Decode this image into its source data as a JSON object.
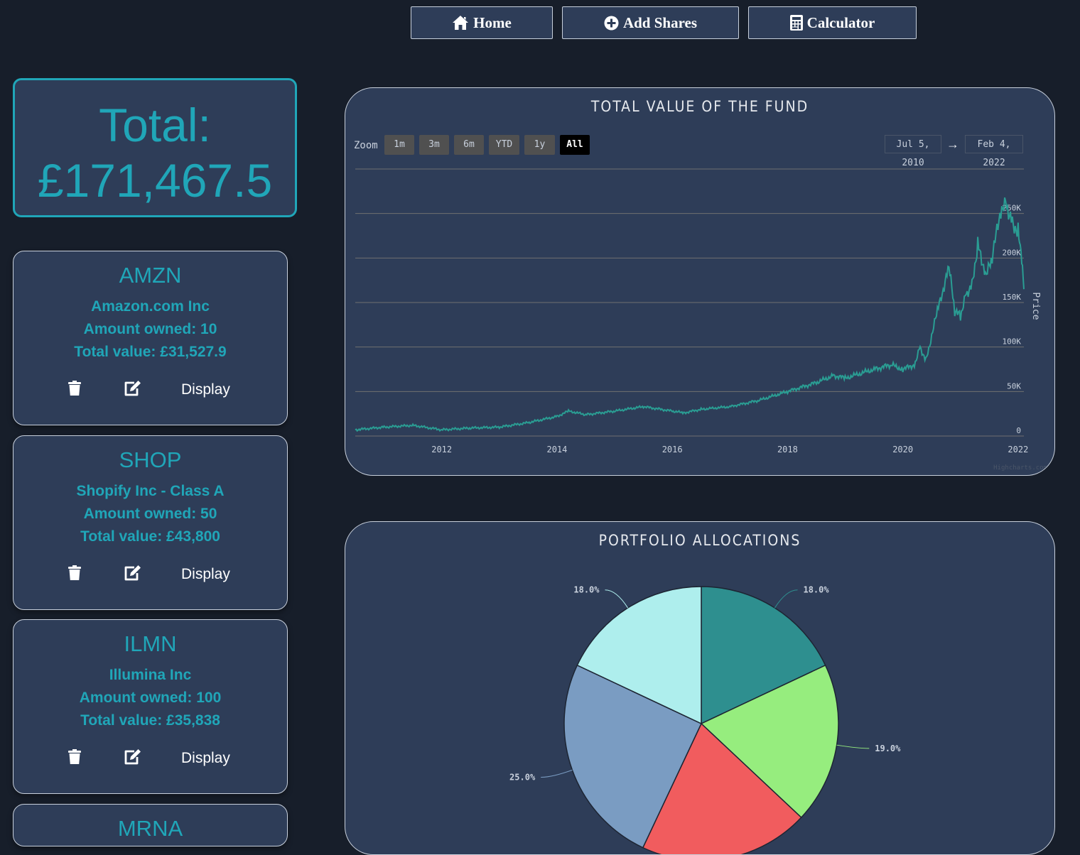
{
  "nav": {
    "home_label": "Home",
    "add_label": "Add Shares",
    "calc_label": "Calculator"
  },
  "total": {
    "label": "Total:",
    "value": "£171,467.5"
  },
  "stocks": [
    {
      "ticker": "AMZN",
      "name": "Amazon.com Inc",
      "amount": "Amount owned: 10",
      "total": "Total value: £31,527.9",
      "display_label": "Display"
    },
    {
      "ticker": "SHOP",
      "name": "Shopify Inc - Class A",
      "amount": "Amount owned: 50",
      "total": "Total value: £43,800",
      "display_label": "Display"
    },
    {
      "ticker": "ILMN",
      "name": "Illumina Inc",
      "amount": "Amount owned: 100",
      "total": "Total value: £35,838",
      "display_label": "Display"
    },
    {
      "ticker": "MRNA"
    }
  ],
  "fund_chart": {
    "title": "TOTAL VALUE OF THE FUND",
    "zoom_label": "Zoom",
    "zoom_buttons": [
      "1m",
      "3m",
      "6m",
      "YTD",
      "1y",
      "All"
    ],
    "selected_zoom": "All",
    "from_date": "Jul 5, 2010",
    "to_date": "Feb 4, 2022",
    "arrow": "→",
    "credits": "Highcharts.com",
    "line_color": "#2a9d93"
  },
  "chart_data": [
    {
      "type": "line",
      "title": "TOTAL VALUE OF THE FUND",
      "ylabel": "Price",
      "xlabel": "",
      "x_ticks": [
        "2012",
        "2014",
        "2016",
        "2018",
        "2020",
        "2022"
      ],
      "y_ticks": [
        "0",
        "50K",
        "100K",
        "150K",
        "200K",
        "250K"
      ],
      "xlim": [
        2010.5,
        2022.1
      ],
      "ylim": [
        0,
        300000
      ],
      "grid": true,
      "series": [
        {
          "x": [
            2010.5,
            2011.0,
            2011.5,
            2012.0,
            2012.5,
            2013.0,
            2013.5,
            2014.0,
            2014.2,
            2014.5,
            2015.0,
            2015.5,
            2016.0,
            2016.2,
            2016.5,
            2017.0,
            2017.5,
            2018.0,
            2018.5,
            2018.8,
            2019.0,
            2019.5,
            2019.8,
            2020.0,
            2020.2,
            2020.3,
            2020.4,
            2020.6,
            2020.8,
            2020.9,
            2021.0,
            2021.1,
            2021.2,
            2021.3,
            2021.45,
            2021.55,
            2021.7,
            2021.8,
            2021.9,
            2022.0,
            2022.05,
            2022.1
          ],
          "y": [
            7000,
            10000,
            12000,
            7000,
            9000,
            10000,
            15000,
            22000,
            28000,
            24000,
            28000,
            33000,
            28000,
            26000,
            30000,
            33000,
            40000,
            50000,
            60000,
            68000,
            65000,
            75000,
            80000,
            75000,
            80000,
            100000,
            85000,
            140000,
            190000,
            140000,
            135000,
            160000,
            170000,
            215000,
            180000,
            200000,
            255000,
            260000,
            240000,
            230000,
            205000,
            165000
          ]
        }
      ]
    },
    {
      "type": "pie",
      "title": "PORTFOLIO ALLOCATIONS",
      "categories": [
        "",
        "",
        "",
        "",
        ""
      ],
      "values": [
        18.0,
        19.0,
        20.0,
        25.0,
        18.0
      ],
      "labels": [
        "18.0%",
        "19.0%",
        "",
        "25.0%",
        "18.0%"
      ],
      "colors": [
        "#2e8f8f",
        "#96ed7e",
        "#f15c5e",
        "#7a9cc2",
        "#aeeeed"
      ]
    }
  ],
  "alloc_chart": {
    "title": "PORTFOLIO ALLOCATIONS"
  }
}
